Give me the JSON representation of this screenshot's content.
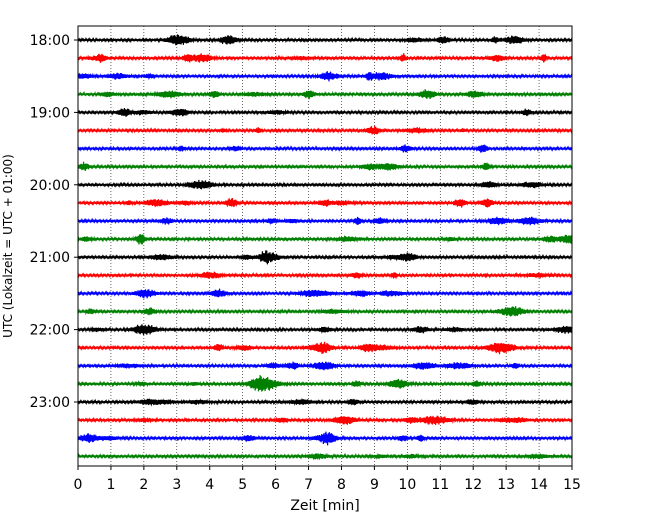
{
  "chart_data": {
    "type": "line",
    "title": "",
    "xlabel": "Zeit  [min]",
    "ylabel": "UTC (Lokalzeit = UTC + 01:00)",
    "xlim": [
      0,
      15
    ],
    "x_ticks": [
      0,
      1,
      2,
      3,
      4,
      5,
      6,
      7,
      8,
      9,
      10,
      11,
      12,
      13,
      14,
      15
    ],
    "x_tick_labels": [
      "0",
      "1",
      "2",
      "3",
      "4",
      "5",
      "6",
      "7",
      "8",
      "9",
      "10",
      "11",
      "12",
      "13",
      "14",
      "15"
    ],
    "y_tick_labels": [
      "18:00",
      "19:00",
      "20:00",
      "21:00",
      "22:00",
      "23:00"
    ],
    "grid": "vertical dotted at each minute",
    "trace_interval_minutes": 15,
    "trace_count": 24,
    "trace_colors": [
      "#000000",
      "#ff0000",
      "#0000ff",
      "#008000"
    ],
    "traces": [
      {
        "start": "18:00",
        "color": "#000000"
      },
      {
        "start": "18:15",
        "color": "#ff0000"
      },
      {
        "start": "18:30",
        "color": "#0000ff"
      },
      {
        "start": "18:45",
        "color": "#008000"
      },
      {
        "start": "19:00",
        "color": "#000000"
      },
      {
        "start": "19:15",
        "color": "#ff0000"
      },
      {
        "start": "19:30",
        "color": "#0000ff"
      },
      {
        "start": "19:45",
        "color": "#008000"
      },
      {
        "start": "20:00",
        "color": "#000000"
      },
      {
        "start": "20:15",
        "color": "#ff0000"
      },
      {
        "start": "20:30",
        "color": "#0000ff"
      },
      {
        "start": "20:45",
        "color": "#008000"
      },
      {
        "start": "21:00",
        "color": "#000000"
      },
      {
        "start": "21:15",
        "color": "#ff0000"
      },
      {
        "start": "21:30",
        "color": "#0000ff"
      },
      {
        "start": "21:45",
        "color": "#008000"
      },
      {
        "start": "22:00",
        "color": "#000000"
      },
      {
        "start": "22:15",
        "color": "#ff0000"
      },
      {
        "start": "22:30",
        "color": "#0000ff"
      },
      {
        "start": "22:45",
        "color": "#008000"
      },
      {
        "start": "23:00",
        "color": "#000000"
      },
      {
        "start": "23:15",
        "color": "#ff0000"
      },
      {
        "start": "23:30",
        "color": "#0000ff"
      },
      {
        "start": "23:45",
        "color": "#008000"
      }
    ]
  }
}
